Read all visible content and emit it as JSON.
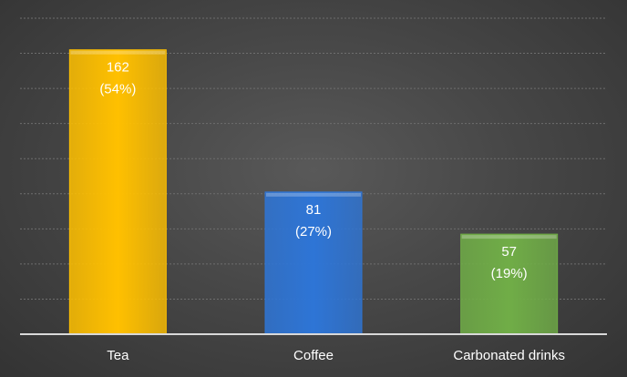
{
  "chart_data": {
    "type": "bar",
    "title": "",
    "xlabel": "",
    "ylabel": "",
    "categories": [
      "Tea",
      "Coffee",
      "Carbonated drinks"
    ],
    "values": [
      162,
      81,
      57
    ],
    "percent_labels": [
      "(54%)",
      "(27%)",
      "(19%)"
    ],
    "value_labels": [
      "162",
      "81",
      "57"
    ],
    "colors": [
      "#FFC000",
      "#2E75D6",
      "#70AD47"
    ],
    "ylim": [
      0,
      180
    ],
    "gridline_step": 20,
    "grid": true,
    "legend": "none",
    "axis_color": "#d9d9d9",
    "background": "#3f3f3f"
  }
}
